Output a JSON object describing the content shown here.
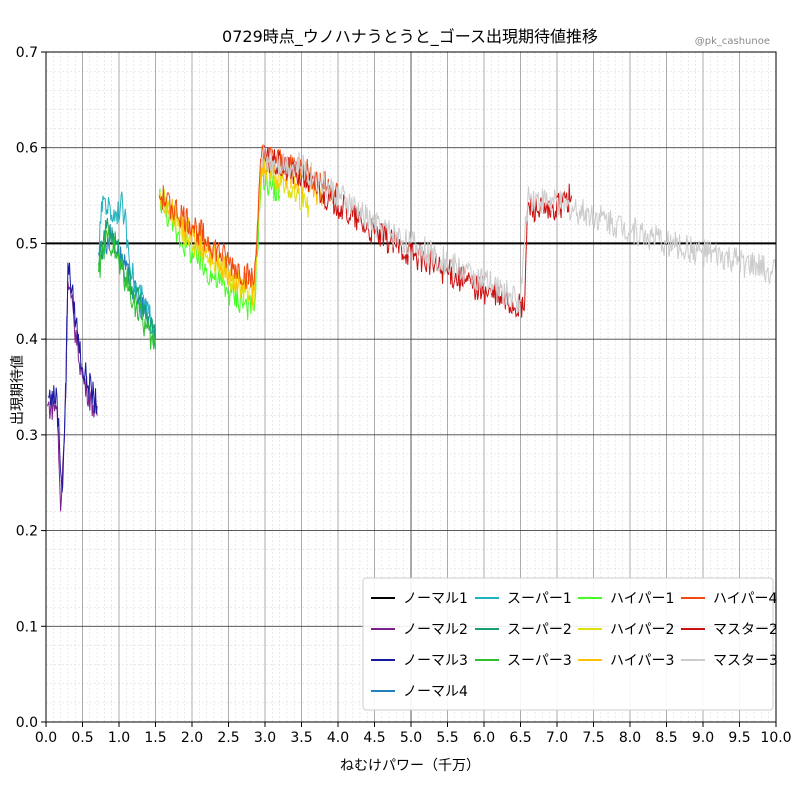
{
  "chart_data": {
    "type": "line",
    "title": "0729時点_ウノハナうとうと_ゴース出現期待値推移",
    "credit": "@pk_cashunoe",
    "xlabel": "ねむけパワー（千万）",
    "ylabel": "出現期待値",
    "xlim": [
      0,
      10
    ],
    "ylim": [
      0,
      0.7
    ],
    "xticks": [
      "0.0",
      "0.5",
      "1.0",
      "1.5",
      "2.0",
      "2.5",
      "3.0",
      "3.5",
      "4.0",
      "4.5",
      "5.0",
      "5.5",
      "6.0",
      "6.5",
      "7.0",
      "7.5",
      "8.0",
      "8.5",
      "9.0",
      "9.5",
      "10.0"
    ],
    "yticks": [
      "0.0",
      "0.1",
      "0.2",
      "0.3",
      "0.4",
      "0.5",
      "0.6",
      "0.7"
    ],
    "reference_line": 0.5,
    "grid": true,
    "legend_position": "lower-right",
    "series": [
      {
        "name": "ノーマル1",
        "color": "#000000",
        "points": []
      },
      {
        "name": "ノーマル2",
        "color": "#7a1f8c",
        "points": [
          [
            0.02,
            0.33
          ],
          [
            0.15,
            0.33
          ],
          [
            0.2,
            0.22
          ],
          [
            0.26,
            0.32
          ],
          [
            0.3,
            0.46
          ],
          [
            0.5,
            0.36
          ],
          [
            0.7,
            0.32
          ]
        ]
      },
      {
        "name": "ノーマル3",
        "color": "#1a1aa0",
        "points": [
          [
            0.03,
            0.34
          ],
          [
            0.15,
            0.34
          ],
          [
            0.22,
            0.24
          ],
          [
            0.27,
            0.34
          ],
          [
            0.3,
            0.48
          ],
          [
            0.5,
            0.37
          ],
          [
            0.7,
            0.33
          ]
        ]
      },
      {
        "name": "ノーマル4",
        "color": "#1f7fbf",
        "points": [
          [
            0.72,
            0.49
          ],
          [
            0.9,
            0.51
          ],
          [
            1.2,
            0.45
          ],
          [
            1.5,
            0.41
          ]
        ]
      },
      {
        "name": "スーパー1",
        "color": "#20b2c0",
        "points": [
          [
            0.72,
            0.49
          ],
          [
            0.78,
            0.55
          ],
          [
            0.9,
            0.53
          ],
          [
            1.05,
            0.54
          ],
          [
            1.2,
            0.46
          ],
          [
            1.5,
            0.41
          ]
        ]
      },
      {
        "name": "スーパー2",
        "color": "#1aa070",
        "points": [
          [
            0.72,
            0.48
          ],
          [
            0.85,
            0.52
          ],
          [
            1.0,
            0.49
          ],
          [
            1.2,
            0.45
          ],
          [
            1.5,
            0.4
          ]
        ]
      },
      {
        "name": "スーパー3",
        "color": "#2ec02e",
        "points": [
          [
            0.72,
            0.47
          ],
          [
            0.85,
            0.51
          ],
          [
            1.0,
            0.48
          ],
          [
            1.2,
            0.44
          ],
          [
            1.5,
            0.39
          ]
        ]
      },
      {
        "name": "ハイパー1",
        "color": "#44ff22",
        "points": [
          [
            1.55,
            0.55
          ],
          [
            1.8,
            0.51
          ],
          [
            2.1,
            0.48
          ],
          [
            2.5,
            0.45
          ],
          [
            2.85,
            0.43
          ],
          [
            2.95,
            0.57
          ],
          [
            3.1,
            0.56
          ],
          [
            3.2,
            0.55
          ]
        ]
      },
      {
        "name": "ハイパー2",
        "color": "#e0e010",
        "points": [
          [
            1.55,
            0.55
          ],
          [
            1.9,
            0.51
          ],
          [
            2.3,
            0.48
          ],
          [
            2.85,
            0.44
          ],
          [
            2.95,
            0.58
          ],
          [
            3.3,
            0.56
          ],
          [
            3.6,
            0.54
          ]
        ]
      },
      {
        "name": "ハイパー3",
        "color": "#ffc000",
        "points": [
          [
            1.55,
            0.55
          ],
          [
            2.0,
            0.51
          ],
          [
            2.5,
            0.47
          ],
          [
            2.85,
            0.45
          ],
          [
            2.95,
            0.58
          ],
          [
            3.4,
            0.57
          ],
          [
            3.8,
            0.55
          ]
        ]
      },
      {
        "name": "ハイパー4",
        "color": "#f04a10",
        "points": [
          [
            1.55,
            0.55
          ],
          [
            2.0,
            0.52
          ],
          [
            2.5,
            0.48
          ],
          [
            2.85,
            0.46
          ],
          [
            2.95,
            0.59
          ],
          [
            3.5,
            0.58
          ],
          [
            4.0,
            0.55
          ]
        ]
      },
      {
        "name": "マスター2",
        "color": "#cc1010",
        "points": [
          [
            2.95,
            0.59
          ],
          [
            3.5,
            0.57
          ],
          [
            4.0,
            0.54
          ],
          [
            4.5,
            0.51
          ],
          [
            5.0,
            0.49
          ],
          [
            5.5,
            0.47
          ],
          [
            6.0,
            0.45
          ],
          [
            6.55,
            0.43
          ],
          [
            6.6,
            0.54
          ],
          [
            6.9,
            0.53
          ],
          [
            7.2,
            0.55
          ]
        ]
      },
      {
        "name": "マスター3",
        "color": "#cccccc",
        "points": [
          [
            2.95,
            0.59
          ],
          [
            3.5,
            0.58
          ],
          [
            4.0,
            0.55
          ],
          [
            4.5,
            0.52
          ],
          [
            5.0,
            0.5
          ],
          [
            5.5,
            0.48
          ],
          [
            6.0,
            0.46
          ],
          [
            6.5,
            0.44
          ],
          [
            6.6,
            0.55
          ],
          [
            7.5,
            0.53
          ],
          [
            8.5,
            0.5
          ],
          [
            9.5,
            0.48
          ],
          [
            10.0,
            0.47
          ]
        ]
      }
    ]
  }
}
